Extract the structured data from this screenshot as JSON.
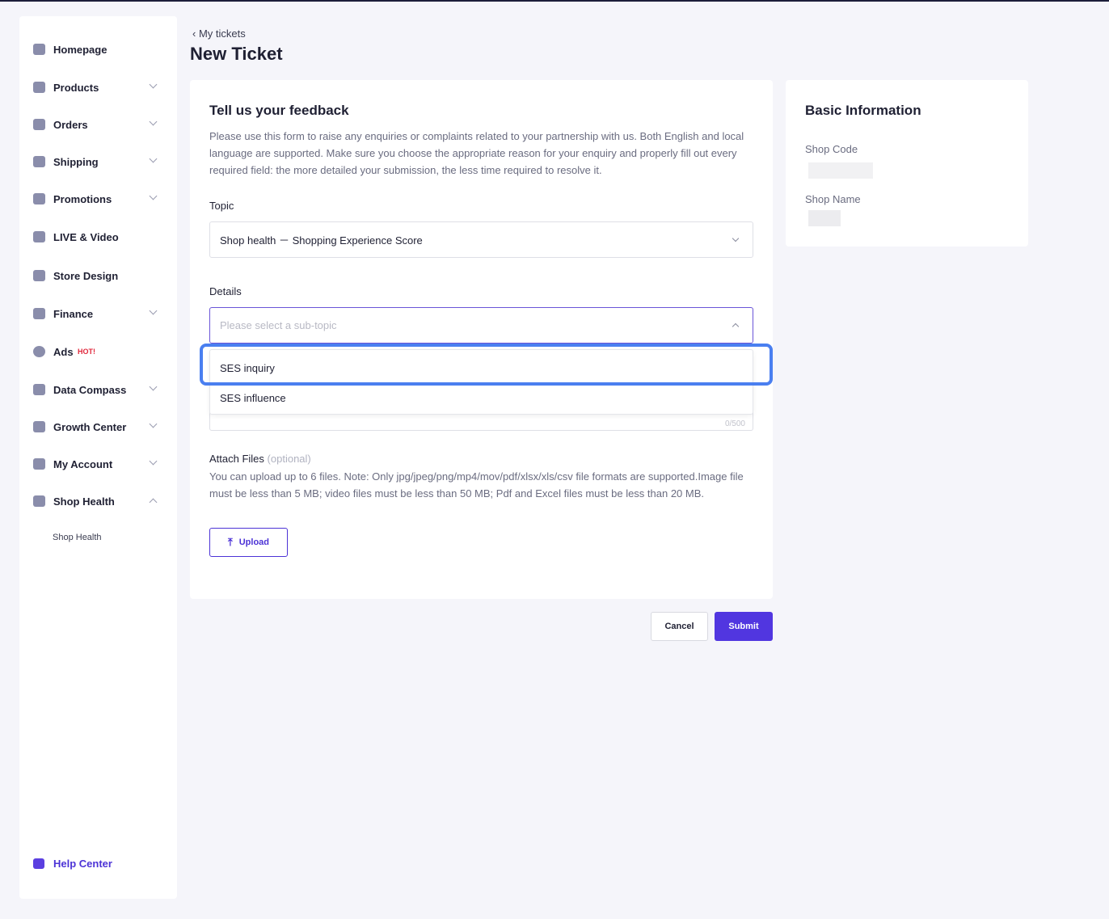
{
  "sidebar": {
    "items": [
      {
        "label": "Homepage",
        "icon": "home-icon",
        "expandable": false
      },
      {
        "label": "Products",
        "icon": "bag-icon",
        "expandable": true
      },
      {
        "label": "Orders",
        "icon": "orders-icon",
        "expandable": true
      },
      {
        "label": "Shipping",
        "icon": "truck-icon",
        "expandable": true
      },
      {
        "label": "Promotions",
        "icon": "megaphone-icon",
        "expandable": true
      },
      {
        "label": "LIVE & Video",
        "icon": "video-icon",
        "expandable": false
      },
      {
        "label": "Store Design",
        "icon": "store-icon",
        "expandable": false
      },
      {
        "label": "Finance",
        "icon": "card-icon",
        "expandable": true
      },
      {
        "label": "Ads",
        "icon": "ad-icon",
        "badge": "HOT!",
        "expandable": false
      },
      {
        "label": "Data Compass",
        "icon": "chart-icon",
        "expandable": true
      },
      {
        "label": "Growth Center",
        "icon": "medal-icon",
        "expandable": true
      },
      {
        "label": "My Account",
        "icon": "user-icon",
        "expandable": true
      },
      {
        "label": "Shop Health",
        "icon": "trophy-icon",
        "expandable": true,
        "expanded": true
      }
    ],
    "sub_item": "Shop Health",
    "help": "Help Center"
  },
  "header": {
    "back": "My tickets",
    "title": "New Ticket"
  },
  "form": {
    "title": "Tell us your feedback",
    "description": "Please use this form to raise any enquiries or complaints related to your partnership with us. Both English and local language are supported. Make sure you choose the appropriate reason for your enquiry and properly fill out every required field: the more detailed your submission, the less time required to resolve it.",
    "topic_label": "Topic",
    "topic_value": "Shop health － Shopping Experience Score",
    "details_label": "Details",
    "details_placeholder": "Please select a sub-topic",
    "options": [
      "SES inquiry",
      "SES influence"
    ],
    "char_count": "0/500",
    "attach_label": "Attach Files",
    "attach_optional": "(optional)",
    "attach_note": "You can upload up to 6 files. Note: Only jpg/jpeg/png/mp4/mov/pdf/xlsx/xls/csv file formats are supported.Image file must be less than 5 MB; video files must be less than 50 MB; Pdf and Excel files must be less than 20 MB.",
    "upload": "Upload"
  },
  "actions": {
    "cancel": "Cancel",
    "submit": "Submit"
  },
  "basic": {
    "title": "Basic Information",
    "shop_code_label": "Shop Code",
    "shop_name_label": "Shop Name"
  },
  "colors": {
    "accent": "#5136e0",
    "highlight": "#4a7ff0",
    "hot": "#e0283c"
  }
}
